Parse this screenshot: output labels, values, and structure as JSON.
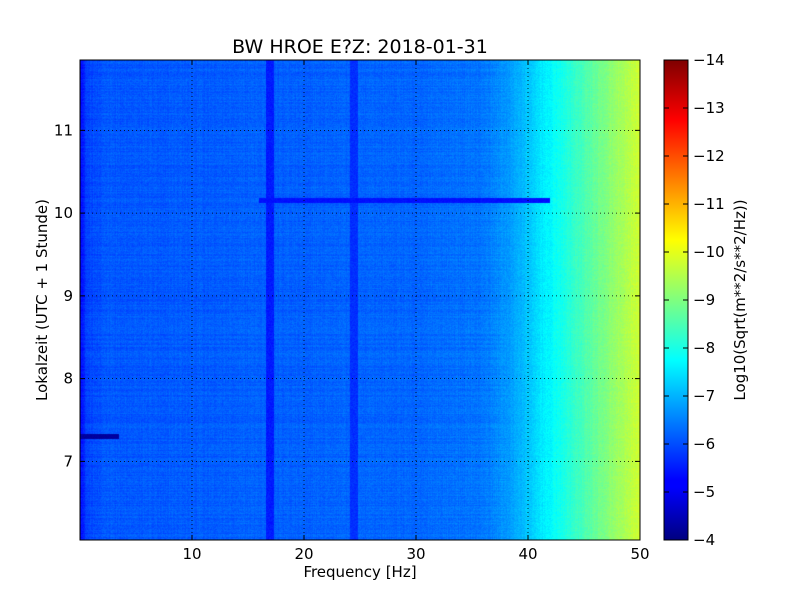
{
  "chart_data": {
    "type": "heatmap",
    "title": "BW HROE E?Z: 2018-01-31",
    "xlabel": "Frequency [Hz]",
    "ylabel": "Lokalzeit (UTC + 1 Stunde)",
    "xlim": [
      0,
      50
    ],
    "ylim": [
      11.85,
      6.05
    ],
    "x_ticks": [
      10,
      20,
      30,
      40,
      50
    ],
    "y_ticks": [
      7,
      8,
      9,
      10,
      11
    ],
    "x_tick_labels": [
      "10",
      "20",
      "30",
      "40",
      "50"
    ],
    "y_tick_labels": [
      "7",
      "8",
      "9",
      "10",
      "11"
    ],
    "grid": true,
    "colormap": "jet",
    "colorbar": {
      "label": "Log10(Sqrt(m**2/s**2/Hz))",
      "range": [
        -14,
        -4
      ],
      "ticks": [
        -4,
        -5,
        -6,
        -7,
        -8,
        -9,
        -10,
        -11,
        -12,
        -13,
        -14
      ],
      "tick_labels": [
        "−4",
        "−5",
        "−6",
        "−7",
        "−8",
        "−9",
        "−10",
        "−11",
        "−12",
        "−13",
        "−14"
      ]
    },
    "level_profile": {
      "frequency_hz": [
        0,
        0.6,
        2,
        10,
        20,
        30,
        36,
        38.5,
        40,
        41.5,
        43,
        44.5,
        46,
        48,
        50
      ],
      "log10_value": [
        -5.2,
        -5.9,
        -6.1,
        -6.15,
        -6.2,
        -6.25,
        -6.4,
        -6.8,
        -7.2,
        -7.6,
        -7.95,
        -8.35,
        -8.75,
        -9.3,
        -9.8
      ]
    },
    "features": [
      {
        "kind": "band",
        "frequency_hz": [
          0,
          0.6
        ],
        "log10_value": -5.1
      },
      {
        "kind": "line",
        "frequency_hz": 17,
        "log10_value": -5.5
      },
      {
        "kind": "line",
        "frequency_hz": 24.5,
        "log10_value": -5.7
      },
      {
        "kind": "event",
        "time": 7.3,
        "frequency_hz": [
          0,
          3.5
        ],
        "log10_value": -4.3
      },
      {
        "kind": "event",
        "time": 10.15,
        "frequency_hz": [
          16,
          42
        ],
        "log10_value": -5.4
      }
    ]
  }
}
